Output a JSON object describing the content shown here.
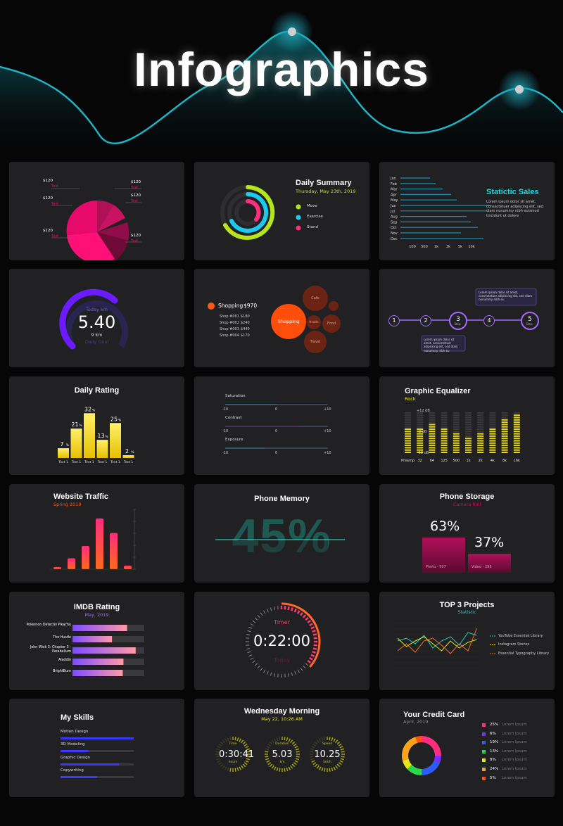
{
  "hero": {
    "title": "Infographics"
  },
  "pie": {
    "labels": [
      "$120",
      "$120",
      "$120",
      "$120",
      "$120",
      "$120"
    ],
    "subs": [
      "Text",
      "Text",
      "Text",
      "Text",
      "Text",
      "Text"
    ]
  },
  "daily_summary": {
    "title": "Daily Summary",
    "date": "Thursday, May 23th, 2019",
    "legend": [
      "Move",
      "Exercise",
      "Stand"
    ],
    "colors": [
      "#b6e619",
      "#1bc9f0",
      "#ff2d7e"
    ]
  },
  "statistic_sales": {
    "title": "Statictic Sales",
    "body": "Lorem ipsum dolor sit amet, consectetuer adipiscing elit, sed diam nonummy nibh euismod tincidunt ut dolore",
    "months": [
      "Jan",
      "Feb",
      "Mar",
      "Apr",
      "May",
      "Jun",
      "Jul",
      "Aug",
      "Sep",
      "Oct",
      "Nov",
      "Dec"
    ],
    "ticks": [
      "100",
      "500",
      "1k",
      "3k",
      "5k",
      "10k"
    ]
  },
  "gauge": {
    "top": "Today km",
    "value": "5.40",
    "unit": "9 km",
    "bottom": "Daily Goal"
  },
  "shopping": {
    "title": "Shopping",
    "amount": "$970",
    "rows": [
      [
        "Shop #001",
        "$180"
      ],
      [
        "Shop #002",
        "$240"
      ],
      [
        "Shop #003",
        "$440"
      ],
      [
        "Shop #004",
        "$170"
      ]
    ],
    "bubbles": [
      "Shopping",
      "Cafe",
      "Health",
      "Food",
      "Travel"
    ]
  },
  "steps": {
    "nums": [
      "1",
      "2",
      "3",
      "4",
      "5"
    ],
    "step_label": "Step",
    "note": "Lorem ipsum dolor sit amet, consectetuer adipiscing elit, sed diam nonummy nibh eu"
  },
  "daily_rating": {
    "title": "Daily Rating",
    "values": [
      "7",
      "21",
      "32",
      "13",
      "25",
      "2"
    ],
    "pct": "%",
    "labels": [
      "Text 1",
      "Text 1",
      "Text 1",
      "Text 1",
      "Text 1",
      "Text 1"
    ]
  },
  "adjust": {
    "items": [
      "Saturation",
      "Contrast",
      "Exposure"
    ],
    "min": "-10",
    "mid": "0",
    "max": "+10"
  },
  "equalizer": {
    "title": "Graphic Equalizer",
    "sub": "Rock",
    "db": [
      "+12 dB",
      "0 dB",
      "-12 dB"
    ],
    "bands": [
      "Preamp",
      "32",
      "64",
      "125",
      "500",
      "1k",
      "2k",
      "4k",
      "8k",
      "16k"
    ]
  },
  "traffic": {
    "title": "Website Traffic",
    "sub": "Spring 2019"
  },
  "memory": {
    "title": "Phone Memory",
    "value": "45%"
  },
  "storage": {
    "title": "Phone Storage",
    "sub": "Camera Roll",
    "photo_pct": "63%",
    "video_pct": "37%",
    "photo": "Photo - 507",
    "video": "Video - 298"
  },
  "imdb": {
    "title": "IMDB Rating",
    "sub": "May, 2019",
    "movies": [
      "Pokemon Detectiv Pikachu",
      "The Hustle",
      "John Wick 3: Chapter 3 - Parabellum",
      "Aladdin",
      "BrightBurn"
    ],
    "values": [
      0.76,
      0.55,
      0.88,
      0.71,
      0.7
    ]
  },
  "timer": {
    "label": "Timer",
    "time": "0:22:00",
    "sub": "Today"
  },
  "projects": {
    "title": "TOP 3 Projects",
    "sub": "Statistic",
    "legend": [
      "YouTube Essential Library",
      "Instagram Stories",
      "Essential Typography Library"
    ],
    "colors": [
      "#29c9c0",
      "#e6e619",
      "#ff6a1a"
    ]
  },
  "skills": {
    "title": "My Skills",
    "items": [
      "Motion Design",
      "3D Modeling",
      "Graphic Design",
      "Copywriting"
    ],
    "values": [
      1.0,
      0.38,
      0.8,
      0.5
    ]
  },
  "wednesday": {
    "title": "Wednesday Morning",
    "date": "May 22, 10:26 AM",
    "dials": [
      [
        "Time",
        "0:30:41",
        "hours"
      ],
      [
        "Duration",
        "5.03",
        "km"
      ],
      [
        "Speed",
        "10.25",
        "km/h"
      ]
    ]
  },
  "credit": {
    "title": "Your Credit Card",
    "sub": "April, 2019",
    "pct": [
      "25%",
      "6%",
      "19%",
      "13%",
      "8%",
      "24%",
      "5%"
    ],
    "label": "Lorem Ipsum",
    "colors": [
      "#ff2d7e",
      "#7b2dff",
      "#2d5bff",
      "#29d94a",
      "#e6e619",
      "#ffa21a",
      "#ff4d1a"
    ]
  }
}
